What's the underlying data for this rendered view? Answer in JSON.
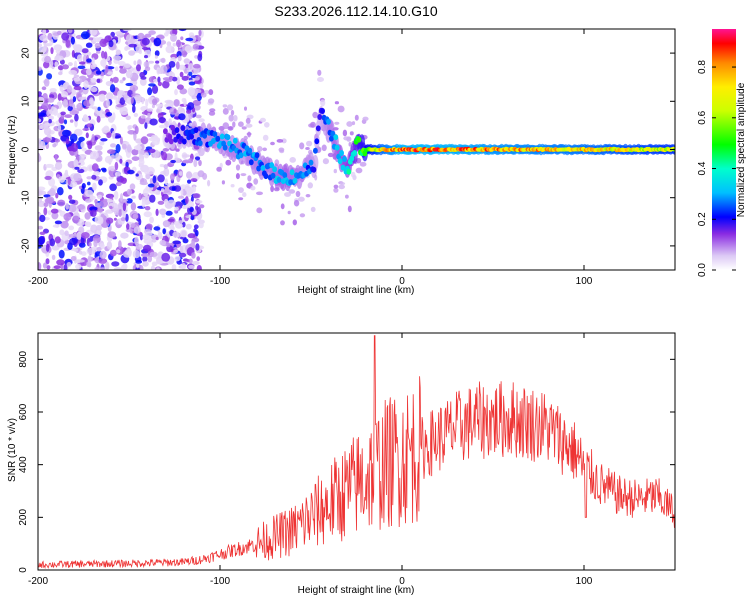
{
  "chart_data": [
    {
      "type": "heatmap",
      "title": "S233.2026.112.14.10.G10",
      "xlabel": "Height of straight line (km)",
      "ylabel": "Frequency (Hz)",
      "xlim": [
        -200,
        150
      ],
      "ylim": [
        -25,
        25
      ],
      "xticks": [
        -200,
        -100,
        0,
        100
      ],
      "yticks": [
        20,
        10,
        0,
        -10,
        -20
      ],
      "colorbar": {
        "label": "Normalized spectral amplitude",
        "range": [
          0,
          0.95
        ],
        "ticks": [
          0.0,
          0.2,
          0.4,
          0.6,
          0.8
        ],
        "tick_labels": [
          "0.0",
          "0.2",
          "0.4",
          "0.6",
          "0.8"
        ]
      },
      "ridge": {
        "x": [
          -130,
          -115,
          -100,
          -85,
          -75,
          -65,
          -55,
          -48,
          -45,
          -40,
          -35,
          -30,
          -25,
          -20,
          -10,
          0,
          20,
          50,
          100,
          150
        ],
        "y": [
          3,
          3,
          2,
          -1,
          -4,
          -6,
          -5,
          -3,
          8,
          4,
          0,
          -5,
          1,
          0,
          0,
          0,
          0,
          0,
          0,
          0
        ],
        "amplitude": [
          0.15,
          0.25,
          0.3,
          0.3,
          0.3,
          0.35,
          0.3,
          0.25,
          0.2,
          0.3,
          0.35,
          0.4,
          0.5,
          0.6,
          0.8,
          0.9,
          0.9,
          0.85,
          0.8,
          0.7
        ]
      },
      "noise_region_x": [
        -200,
        -110
      ]
    },
    {
      "type": "line",
      "xlabel": "Height of straight line (km)",
      "ylabel": "SNR (10 * v/v)",
      "xlim": [
        -200,
        150
      ],
      "ylim": [
        0,
        900
      ],
      "xticks": [
        -200,
        -100,
        0,
        100
      ],
      "yticks": [
        0,
        200,
        400,
        600,
        800
      ],
      "color": "#ee3333",
      "series": [
        {
          "x": [
            -200,
            -150,
            -120,
            -110,
            -100,
            -80,
            -60,
            -40,
            -20,
            -10,
            0,
            10,
            20,
            30,
            40,
            50,
            60,
            70,
            80,
            90,
            95,
            100,
            110,
            120,
            130,
            140,
            150
          ],
          "values": [
            20,
            25,
            30,
            40,
            60,
            100,
            150,
            250,
            350,
            400,
            430,
            460,
            500,
            540,
            565,
            570,
            575,
            560,
            540,
            480,
            450,
            390,
            320,
            280,
            270,
            280,
            220
          ]
        }
      ],
      "spikes": [
        {
          "x": -15,
          "y": 890
        },
        {
          "x": 101,
          "y": 200
        }
      ]
    }
  ]
}
